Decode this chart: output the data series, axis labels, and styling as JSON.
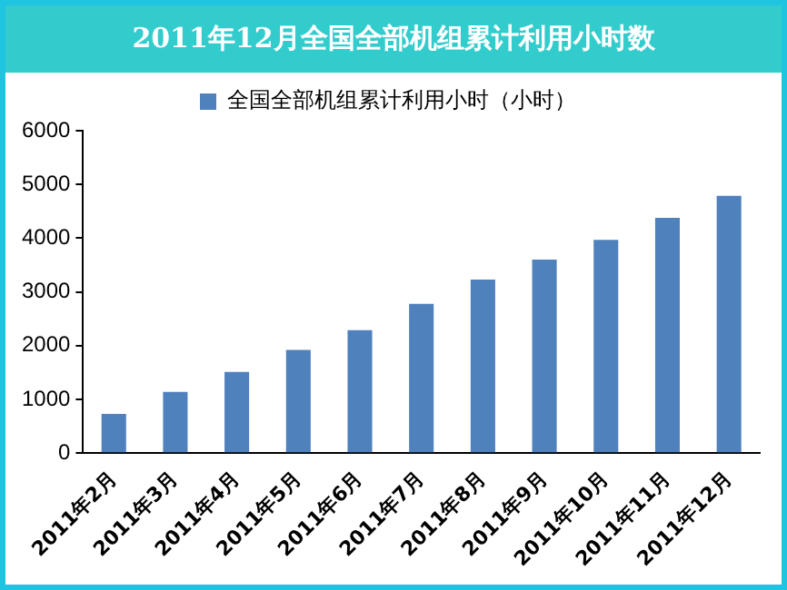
{
  "chart_data": {
    "type": "bar",
    "title": "2011年12月全国全部机组累计利用小时数",
    "categories": [
      "2011年2月",
      "2011年3月",
      "2011年4月",
      "2011年5月",
      "2011年6月",
      "2011年7月",
      "2011年8月",
      "2011年9月",
      "2011年10月",
      "2011年11月",
      "2011年12月"
    ],
    "series": [
      {
        "name": "全国全部机组累计利用小时（小时）",
        "color": "#4f81bd",
        "values": [
          730,
          1140,
          1510,
          1920,
          2290,
          2780,
          3230,
          3600,
          3970,
          4380,
          4790
        ]
      }
    ],
    "ylim": [
      0,
      6000
    ],
    "yticks": [
      0,
      1000,
      2000,
      3000,
      4000,
      5000,
      6000
    ],
    "grid": false,
    "legend": "top"
  }
}
